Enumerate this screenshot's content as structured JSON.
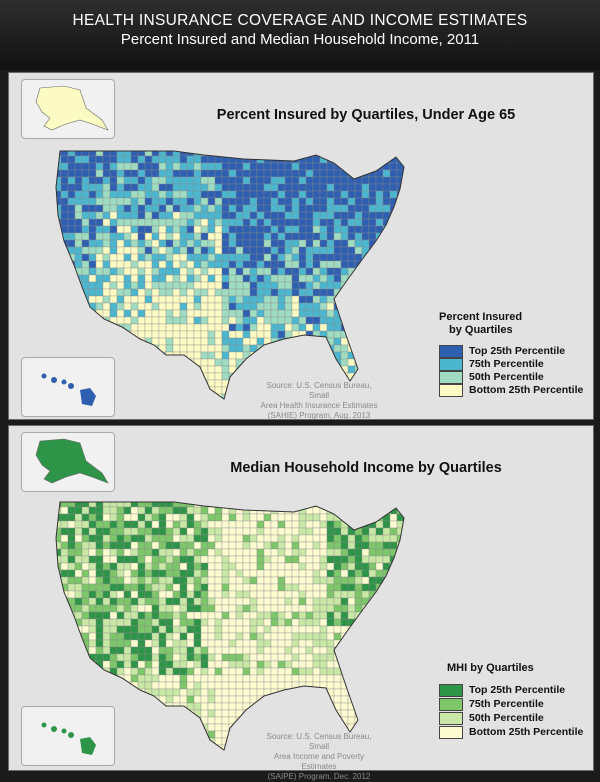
{
  "header": {
    "title": "HEALTH INSURANCE COVERAGE AND INCOME ESTIMATES",
    "subtitle": "Percent Insured and Median Household Income, 2011"
  },
  "panels": [
    {
      "title": "Percent Insured by Quartiles, Under Age 65",
      "legend_title_line1": "Percent Insured",
      "legend_title_line2": "by Quartiles",
      "legend": [
        {
          "label": "Top 25th Percentile",
          "color": "#2e5fb0"
        },
        {
          "label": "75th Percentile",
          "color": "#4cb6cf"
        },
        {
          "label": "50th Percentile",
          "color": "#9fdcc1"
        },
        {
          "label": "Bottom 25th Percentile",
          "color": "#fdfbc4"
        }
      ],
      "source_line1": "Source: U.S. Census Bureau, Small",
      "source_line2": "Area Health Insurance Estimates",
      "source_line3": "(SAHIE) Program, Aug. 2013"
    },
    {
      "title": "Median Household Income by Quartiles",
      "legend_title_line1": "MHI by Quartiles",
      "legend": [
        {
          "label": "Top 25th Percentile",
          "color": "#2e9448"
        },
        {
          "label": "75th Percentile",
          "color": "#7dc66a"
        },
        {
          "label": "50th Percentile",
          "color": "#c9e8a6"
        },
        {
          "label": "Bottom 25th Percentile",
          "color": "#fdfbd0"
        }
      ],
      "source_line1": "Source: U.S. Census Bureau, Small",
      "source_line2": "Area Income and Poverty Estimates",
      "source_line3": "(SAIPE) Program, Dec. 2012"
    }
  ]
}
